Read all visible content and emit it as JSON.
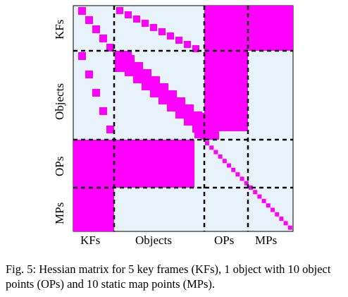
{
  "matrix": {
    "row_labels": [
      "KFs",
      "Objects",
      "OPs",
      "MPs"
    ],
    "col_labels": [
      "KFs",
      "Objects",
      "OPs",
      "MPs"
    ],
    "background_color": "#e7f2fb",
    "fill_color": "#ff00ff",
    "separator_color": "#000000"
  },
  "caption": {
    "label": "Fig. 5:",
    "text": "Hessian matrix for 5 key frames (KFs), 1 object with 10 object points (OPs) and 10 static map points (MPs)."
  }
}
